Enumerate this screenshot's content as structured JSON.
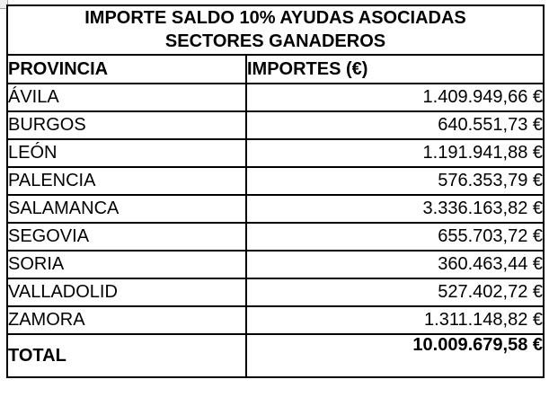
{
  "title": {
    "line1": "IMPORTE SALDO 10% AYUDAS ASOCIADAS",
    "line2": "SECTORES GANADEROS"
  },
  "header": {
    "provincia": "PROVINCIA",
    "importes": "IMPORTES (€)"
  },
  "rows": [
    {
      "provincia": "ÁVILA",
      "importe": "1.409.949,66 €"
    },
    {
      "provincia": "BURGOS",
      "importe": "640.551,73 €"
    },
    {
      "provincia": "LEÓN",
      "importe": "1.191.941,88 €"
    },
    {
      "provincia": "PALENCIA",
      "importe": "576.353,79 €"
    },
    {
      "provincia": "SALAMANCA",
      "importe": "3.336.163,82 €"
    },
    {
      "provincia": "SEGOVIA",
      "importe": "655.703,72 €"
    },
    {
      "provincia": "SORIA",
      "importe": "360.463,44 €"
    },
    {
      "provincia": "VALLADOLID",
      "importe": "527.402,72 €"
    },
    {
      "provincia": "ZAMORA",
      "importe": "1.311.148,82 €"
    }
  ],
  "total": {
    "label": "TOTAL",
    "importe": "10.009.679,58 €"
  },
  "colors": {
    "border": "#000000",
    "text": "#000000",
    "background": "#ffffff"
  },
  "chart_data": {
    "type": "table",
    "title": "IMPORTE SALDO 10% AYUDAS ASOCIADAS SECTORES GANADEROS",
    "columns": [
      "PROVINCIA",
      "IMPORTES (€)"
    ],
    "categories": [
      "ÁVILA",
      "BURGOS",
      "LEÓN",
      "PALENCIA",
      "SALAMANCA",
      "SEGOVIA",
      "SORIA",
      "VALLADOLID",
      "ZAMORA"
    ],
    "values": [
      1409949.66,
      640551.73,
      1191941.88,
      576353.79,
      3336163.82,
      655703.72,
      360463.44,
      527402.72,
      1311148.82
    ],
    "total": 10009679.58,
    "currency": "EUR",
    "number_format": "es-ES"
  }
}
